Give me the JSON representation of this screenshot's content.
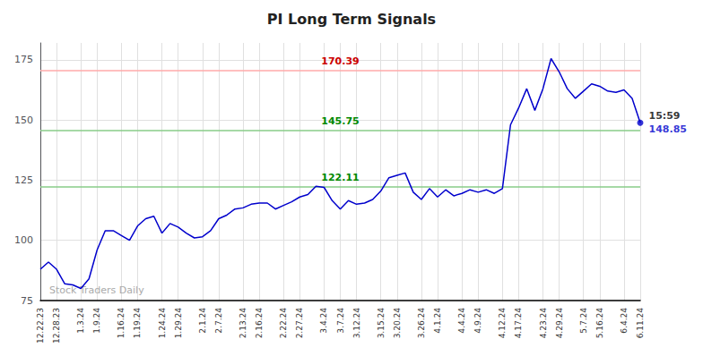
{
  "chart_data": {
    "type": "line",
    "title": "PI Long Term Signals",
    "categories": [
      "12.22.23",
      null,
      "12.28.23",
      null,
      null,
      "1.3.24",
      null,
      "1.9.24",
      null,
      null,
      "1.16.24",
      null,
      "1.19.24",
      null,
      null,
      "1.24.24",
      null,
      "1.29.24",
      null,
      null,
      "2.1.24",
      null,
      "2.7.24",
      null,
      null,
      "2.13.24",
      null,
      "2.16.24",
      null,
      null,
      "2.22.24",
      null,
      "2.27.24",
      null,
      null,
      "3.4.24",
      null,
      "3.7.24",
      null,
      "3.12.24",
      null,
      null,
      "3.15.24",
      null,
      "3.20.24",
      null,
      null,
      "3.26.24",
      null,
      "4.1.24",
      null,
      null,
      "4.4.24",
      null,
      "4.9.24",
      null,
      null,
      "4.12.24",
      null,
      "4.17.24",
      null,
      null,
      "4.23.24",
      null,
      "4.29.24",
      null,
      null,
      "5.7.24",
      null,
      "5.16.24",
      null,
      null,
      "6.4.24",
      null,
      "6.11.24"
    ],
    "values": [
      88.0,
      91.0,
      88.0,
      82.0,
      81.5,
      80.0,
      84.0,
      96.0,
      104.0,
      104.0,
      102.0,
      100.0,
      106.0,
      109.0,
      110.0,
      103.0,
      107.0,
      105.5,
      103.0,
      101.0,
      101.5,
      104.0,
      109.0,
      110.5,
      113.0,
      113.5,
      115.0,
      115.5,
      115.5,
      113.0,
      114.5,
      116.0,
      118.0,
      119.0,
      122.5,
      122.0,
      116.5,
      113.0,
      116.5,
      115.0,
      115.5,
      117.0,
      120.5,
      126.0,
      127.0,
      128.0,
      120.0,
      117.0,
      121.5,
      118.0,
      121.0,
      118.5,
      119.5,
      121.0,
      120.0,
      121.0,
      119.5,
      121.5,
      148.0,
      155.0,
      163.0,
      154.0,
      163.0,
      175.5,
      170.0,
      163.0,
      159.0,
      162.0,
      165.0,
      164.0,
      162.0,
      161.5,
      162.5,
      159.0,
      148.85
    ],
    "color": "#0000cc",
    "ylim": [
      75,
      182
    ],
    "yticks": [
      75,
      100,
      125,
      150,
      175
    ],
    "grid": true,
    "reference_lines": [
      {
        "value": 170.39,
        "label": "170.39",
        "color": "#ffaaaa",
        "label_color": "#cc0000"
      },
      {
        "value": 145.75,
        "label": "145.75",
        "color": "#88cc88",
        "label_color": "#008800"
      },
      {
        "value": 122.11,
        "label": "122.11",
        "color": "#88cc88",
        "label_color": "#008800"
      }
    ],
    "end_labels": [
      {
        "text": "15:59",
        "color": "#000000"
      },
      {
        "text": "148.85",
        "color": "#0000cc"
      }
    ],
    "watermark": {
      "text": "Stock Traders Daily",
      "color": "#aaaaaa"
    }
  }
}
